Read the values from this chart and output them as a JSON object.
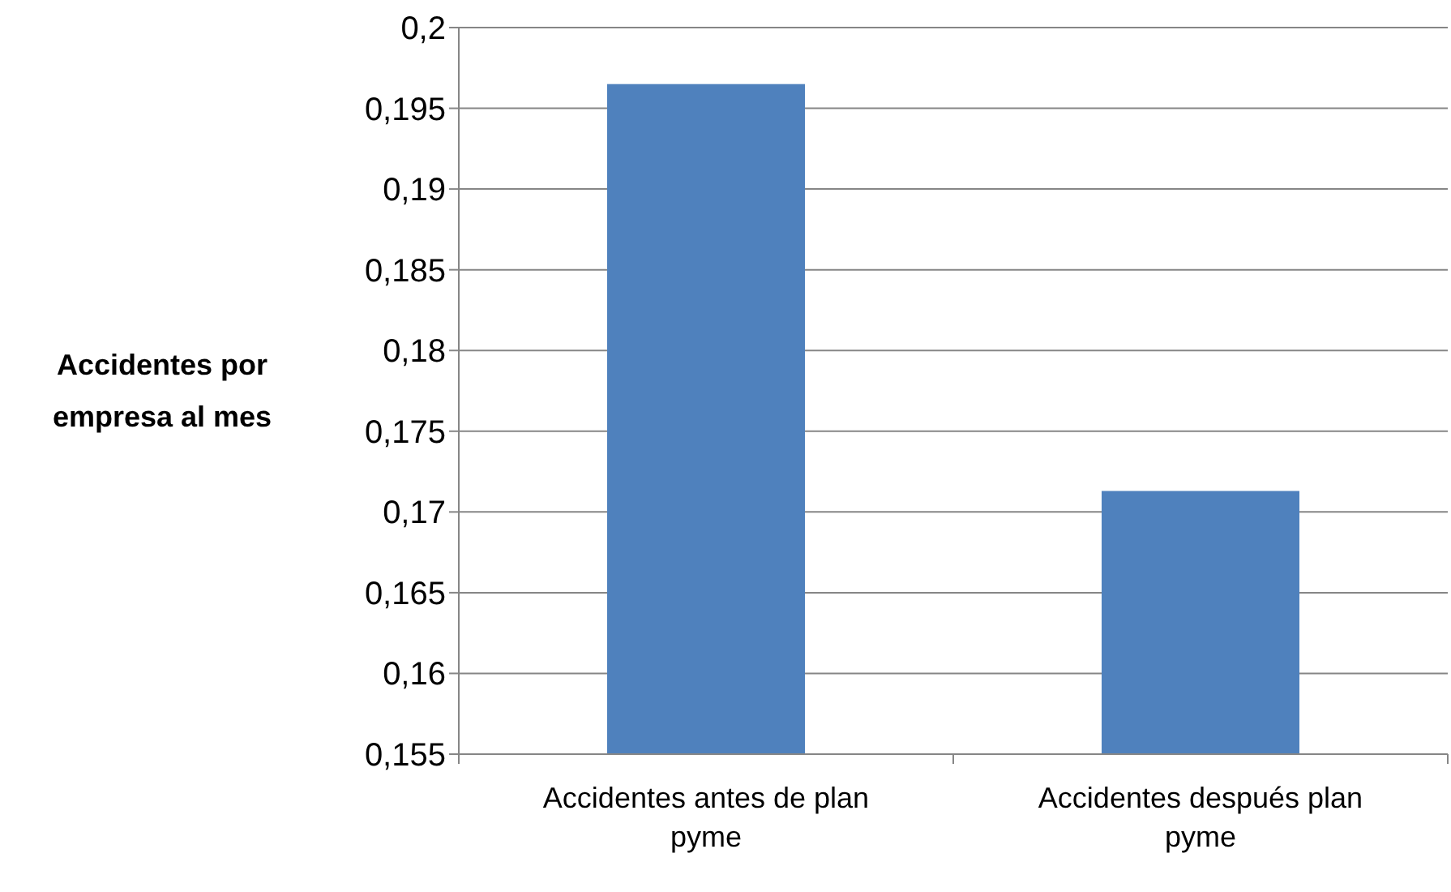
{
  "chart_data": {
    "type": "bar",
    "ylabel": "Accidentes por empresa al mes",
    "categories": [
      "Accidentes antes de plan pyme",
      "Accidentes después plan pyme"
    ],
    "series": [
      {
        "color": "#4f81bd",
        "values": [
          0.1965,
          0.1713
        ]
      }
    ],
    "ylim": [
      0.155,
      0.2
    ],
    "yticks": [
      {
        "value": 0.155,
        "label": "0,155"
      },
      {
        "value": 0.16,
        "label": "0,16"
      },
      {
        "value": 0.165,
        "label": "0,165"
      },
      {
        "value": 0.17,
        "label": "0,17"
      },
      {
        "value": 0.175,
        "label": "0,175"
      },
      {
        "value": 0.18,
        "label": "0,18"
      },
      {
        "value": 0.185,
        "label": "0,185"
      },
      {
        "value": 0.19,
        "label": "0,19"
      },
      {
        "value": 0.195,
        "label": "0,195"
      },
      {
        "value": 0.2,
        "label": "0,2"
      }
    ],
    "grid": "y"
  }
}
